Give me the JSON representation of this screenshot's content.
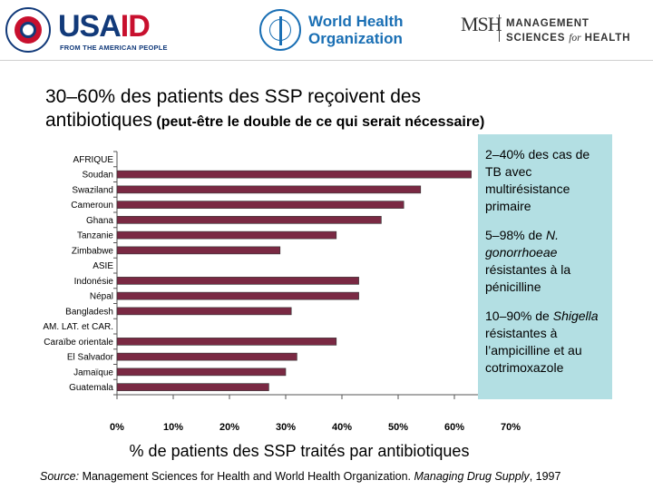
{
  "header": {
    "usaid": {
      "word_left": "USA",
      "word_right": "ID",
      "subtitle": "FROM THE AMERICAN PEOPLE"
    },
    "who": {
      "line1": "World Health",
      "line2": "Organization",
      "emblem": "who-emblem-icon"
    },
    "msh": {
      "mark": "MSH",
      "line1": "MANAGEMENT",
      "line2_a": "SCIENCES ",
      "line2_b": "for",
      "line2_c": " HEALTH"
    }
  },
  "title": {
    "main_line1": "30–60% des patients des SSP reçoivent des",
    "main_line2": "antibiotiques",
    "sub": " (peut-être le double de ce qui serait nécessaire)"
  },
  "sidebox": {
    "p1": "2–40% des cas de TB avec multirésistance primaire",
    "p2_a": "5–98% de ",
    "p2_i": "N. gonorrhoeae",
    "p2_b": " résistantes à la pénicilline",
    "p3_a": "10–90% de ",
    "p3_i": "Shigella",
    "p3_b": " résistantes à l’ampicilline et au cotrimoxazole"
  },
  "footer": {
    "xlabel": "% de patients des SSP traités par antibiotiques",
    "source_label": "Source:",
    "source_text": " Management Sciences for Health and World Health Organization. ",
    "source_book": "Managing Drug Supply",
    "source_year": ", 1997"
  },
  "chart_data": {
    "type": "bar",
    "orientation": "horizontal",
    "categories": [
      "AFRIQUE",
      "Soudan",
      "Swaziland",
      "Cameroun",
      "Ghana",
      "Tanzanie",
      "Zimbabwe",
      "ASIE",
      "Indonésie",
      "Népal",
      "Bangladesh",
      "AM. LAT. et CAR.",
      "Caraïbe orientale",
      "El Salvador",
      "Jamaïque",
      "Guatemala"
    ],
    "values": [
      null,
      63,
      54,
      51,
      47,
      39,
      29,
      null,
      43,
      43,
      31,
      null,
      39,
      32,
      30,
      27
    ],
    "xlim": [
      0,
      70
    ],
    "ticks": [
      "0%",
      "10%",
      "20%",
      "30%",
      "40%",
      "50%",
      "60%",
      "70%"
    ],
    "bar_color": "#7a2943",
    "grid": false
  }
}
